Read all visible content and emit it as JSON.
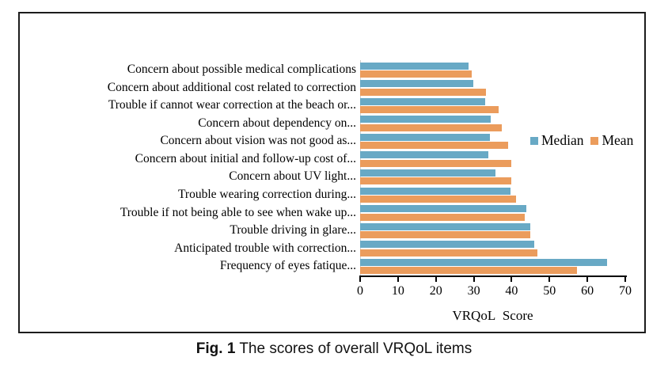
{
  "figure": {
    "caption_prefix": "Fig. 1",
    "caption_text": " The scores of overall VRQoL items"
  },
  "colors": {
    "median_bar": "#68A9C5",
    "mean_bar": "#EB9C5C",
    "frame_border": "#1c1c1c",
    "axis": "#000000",
    "baseline_gridline": "#cfcfcf"
  },
  "chart_data": {
    "type": "bar",
    "orientation": "horizontal",
    "title": "",
    "xlabel": "VRQoL Score",
    "ylabel": "",
    "xlim": [
      0,
      70
    ],
    "xticks": [
      0,
      10,
      20,
      30,
      40,
      50,
      60,
      70
    ],
    "grid": false,
    "legend_position": "right",
    "categories": [
      "Concern about possible medical complications",
      "Concern about additional cost related to correction",
      "Trouble if cannot wear correction at the beach or...",
      "Concern about dependency on...",
      "Concern about vision was not good as...",
      "Concern about initial and follow-up cost of...",
      "Concern about UV light...",
      "Trouble wearing correction during...",
      "Trouble if not being able to see when wake up...",
      "Trouble driving in glare...",
      "Anticipated trouble with correction...",
      "Frequency of eyes fatique..."
    ],
    "series": [
      {
        "name": "Median",
        "color": "#68A9C5",
        "values": [
          28.7,
          29.8,
          33.0,
          34.5,
          34.3,
          33.8,
          35.8,
          39.7,
          43.8,
          45.0,
          46.0,
          65.2
        ]
      },
      {
        "name": "Mean",
        "color": "#EB9C5C",
        "values": [
          29.4,
          33.3,
          36.6,
          37.4,
          39.0,
          39.9,
          40.0,
          41.2,
          43.4,
          45.0,
          46.9,
          57.3
        ]
      }
    ]
  }
}
